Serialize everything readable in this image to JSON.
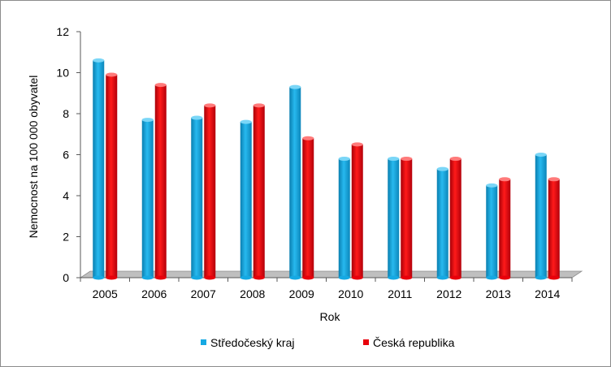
{
  "chart_data": {
    "type": "bar",
    "title": "",
    "xlabel": "Rok",
    "ylabel": "Nemocnost na 100 000 obyvatel",
    "categories": [
      "2005",
      "2006",
      "2007",
      "2008",
      "2009",
      "2010",
      "2011",
      "2012",
      "2013",
      "2014"
    ],
    "series": [
      {
        "name": "Středočeský kraj",
        "color": "#16a9e3",
        "values": [
          10.6,
          7.7,
          7.8,
          7.6,
          9.3,
          5.8,
          5.8,
          5.3,
          4.5,
          6.0
        ]
      },
      {
        "name": "Česká republika",
        "color": "#e8000b",
        "values": [
          9.9,
          9.4,
          8.4,
          8.4,
          6.8,
          6.5,
          5.8,
          5.8,
          4.8,
          4.8
        ]
      }
    ],
    "ylim": [
      0,
      12
    ],
    "yticks": [
      "0",
      "2",
      "4",
      "6",
      "8",
      "10",
      "12"
    ],
    "grid": false,
    "legend_position": "bottom"
  }
}
